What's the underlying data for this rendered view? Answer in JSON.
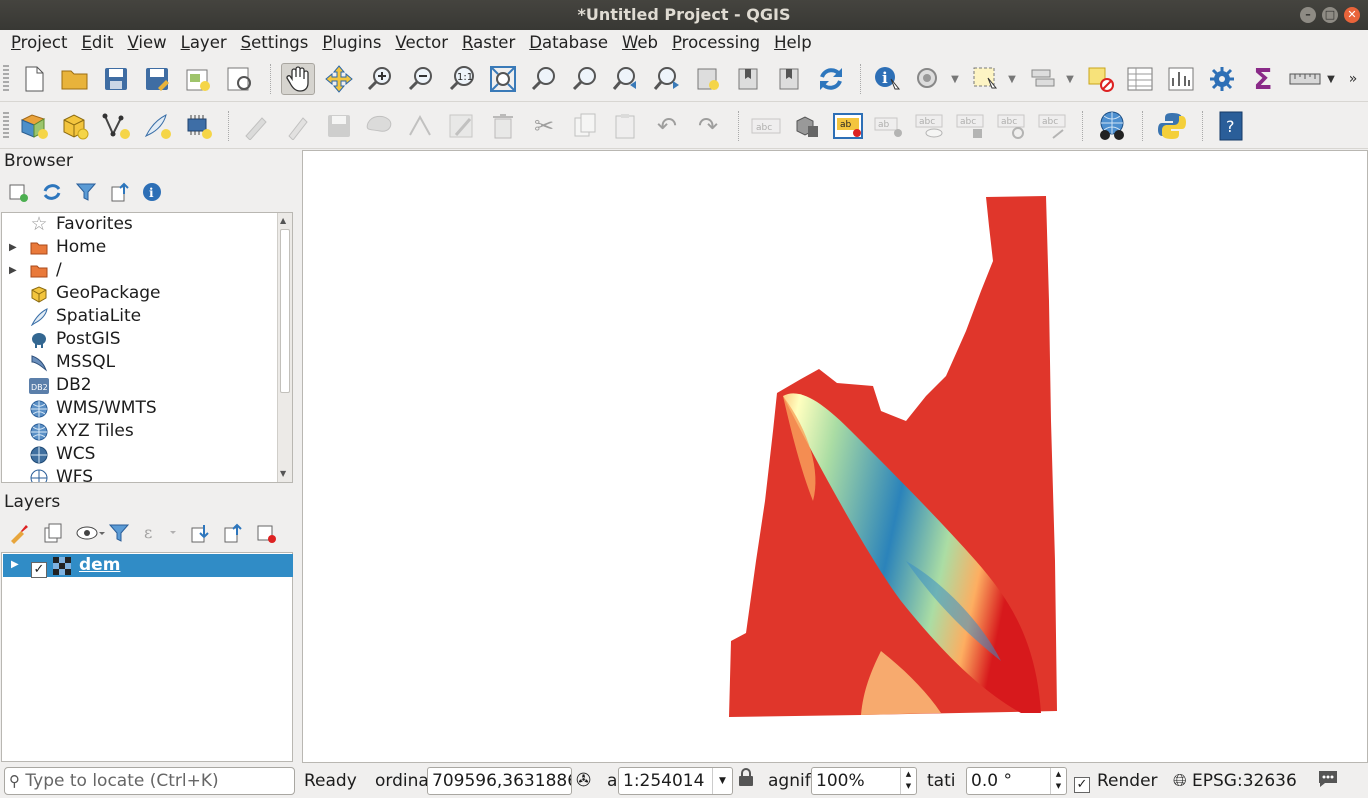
{
  "window": {
    "title": "*Untitled Project - QGIS"
  },
  "menubar": [
    "Project",
    "Edit",
    "View",
    "Layer",
    "Settings",
    "Plugins",
    "Vector",
    "Raster",
    "Database",
    "Web",
    "Processing",
    "Help"
  ],
  "browser": {
    "title": "Browser",
    "items": [
      {
        "label": "Favorites",
        "icon": "star-icon",
        "expandable": false
      },
      {
        "label": "Home",
        "icon": "folder-icon",
        "expandable": true
      },
      {
        "label": "/",
        "icon": "folder-icon",
        "expandable": true
      },
      {
        "label": "GeoPackage",
        "icon": "geopackage-icon",
        "expandable": false
      },
      {
        "label": "SpatiaLite",
        "icon": "spatialite-feather-icon",
        "expandable": false
      },
      {
        "label": "PostGIS",
        "icon": "postgis-elephant-icon",
        "expandable": false
      },
      {
        "label": "MSSQL",
        "icon": "mssql-icon",
        "expandable": false
      },
      {
        "label": "DB2",
        "icon": "db2-icon",
        "expandable": false
      },
      {
        "label": "WMS/WMTS",
        "icon": "globe-icon",
        "expandable": false
      },
      {
        "label": "XYZ Tiles",
        "icon": "globe-icon",
        "expandable": false
      },
      {
        "label": "WCS",
        "icon": "globe-icon",
        "expandable": false
      },
      {
        "label": "WFS",
        "icon": "globe-icon",
        "expandable": false
      }
    ]
  },
  "layers": {
    "title": "Layers",
    "items": [
      {
        "label": "dem",
        "checked": true,
        "selected": true
      }
    ]
  },
  "statusbar": {
    "locator_placeholder": "Type to locate (Ctrl+K)",
    "status": "Ready",
    "coordinate_label": "ordina",
    "coordinate_value": "709596,3631886",
    "scale_label": "a",
    "scale_value": "1:254014",
    "magnifier_label": "agnif",
    "magnifier_value": "100%",
    "rotation_label": "tati",
    "rotation_value": "0.0 °",
    "render_label": "Render",
    "render_checked": true,
    "crs": "EPSG:32636"
  },
  "colors": {
    "selection": "#308cc6",
    "dem_low": "#d7191c",
    "dem_mid_low": "#fdae61",
    "dem_mid": "#ffffbf",
    "dem_mid_high": "#abdda4",
    "dem_high": "#2b83ba"
  }
}
